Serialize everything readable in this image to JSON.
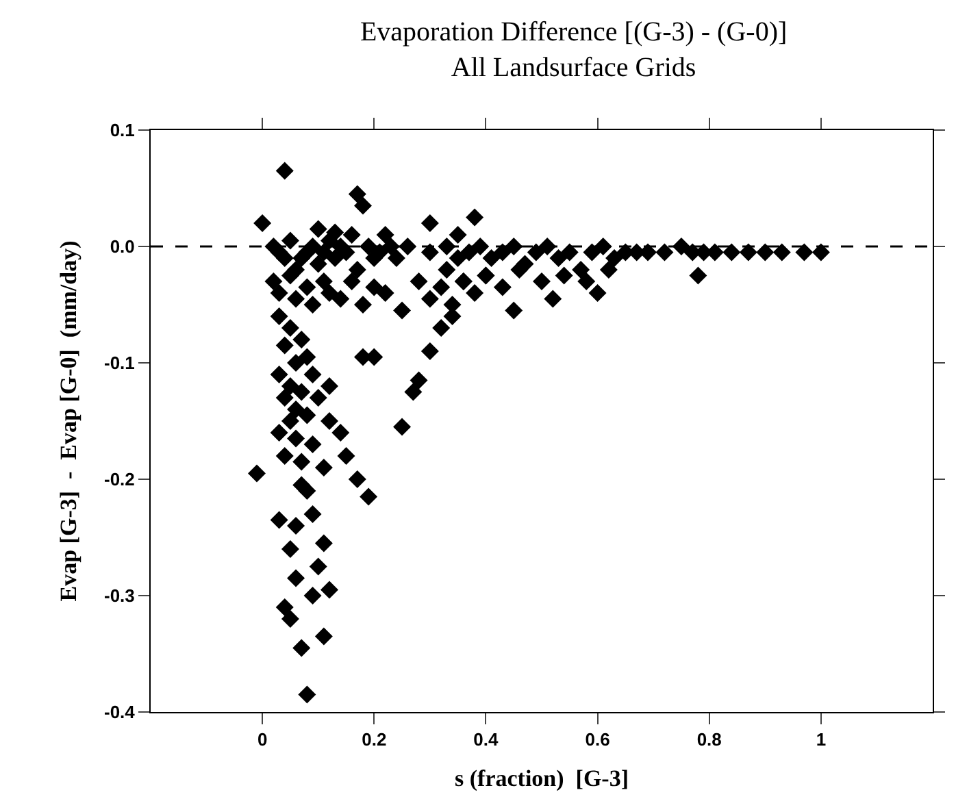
{
  "chart_data": {
    "type": "scatter",
    "title": "Evaporation Difference [(G-3) - (G-0)]",
    "subtitle": "All Landsurface Grids",
    "xlabel": "s (fraction)  [G-3]",
    "ylabel": "Evap [G-3]  -  Evap [G-0]  (mm/day)",
    "xlim": [
      -0.2,
      1.2
    ],
    "xticks": [
      0,
      0.2,
      0.4,
      0.6,
      0.8,
      1
    ],
    "ylim": [
      -0.4,
      0.1
    ],
    "yticks": [
      0.1,
      {
        "value": 0,
        "label": "0.0"
      },
      -0.1,
      -0.2,
      -0.3,
      -0.4
    ],
    "grid": false,
    "marker": "diamond",
    "ref_lines": [
      {
        "axis": "y",
        "value": 0,
        "label": null,
        "color": "#000000",
        "line_style": "dashed"
      }
    ],
    "series": [
      {
        "color": "#000000",
        "x": [
          0.04,
          0.0,
          0.17,
          0.18,
          0.3,
          0.38,
          0.35,
          0.1,
          0.13,
          0.22,
          0.26,
          0.02,
          0.03,
          0.04,
          0.05,
          0.06,
          0.07,
          0.08,
          0.09,
          0.1,
          0.11,
          0.12,
          0.13,
          0.14,
          0.15,
          0.16,
          0.17,
          0.19,
          0.2,
          0.21,
          0.23,
          0.24,
          0.02,
          0.03,
          0.05,
          0.06,
          0.08,
          0.09,
          0.11,
          0.12,
          0.14,
          0.16,
          0.18,
          0.2,
          0.22,
          0.25,
          0.28,
          0.3,
          0.32,
          0.34,
          0.36,
          0.38,
          0.4,
          0.3,
          0.33,
          0.35,
          0.37,
          0.39,
          0.41,
          0.43,
          0.45,
          0.47,
          0.49,
          0.51,
          0.53,
          0.55,
          0.57,
          0.59,
          0.61,
          0.63,
          0.65,
          0.67,
          0.69,
          0.72,
          0.75,
          0.77,
          0.79,
          0.81,
          0.84,
          0.87,
          0.9,
          0.93,
          0.97,
          1.0,
          0.33,
          0.36,
          0.4,
          0.43,
          0.46,
          0.5,
          0.54,
          0.58,
          0.62,
          0.45,
          0.52,
          0.6,
          0.78,
          0.03,
          0.05,
          0.04,
          0.07,
          0.06,
          0.08,
          0.03,
          0.05,
          0.09,
          0.04,
          0.07,
          0.1,
          0.06,
          0.08,
          0.05,
          0.12,
          0.03,
          0.06,
          0.09,
          0.04,
          0.07,
          0.11,
          0.25,
          0.27,
          0.28,
          0.3,
          0.32,
          0.34,
          0.18,
          0.2,
          0.17,
          0.19,
          0.15,
          0.14,
          0.12,
          0.08,
          0.07,
          0.11,
          0.05,
          0.04,
          0.09,
          0.12,
          0.06,
          0.1,
          0.03,
          0.06,
          0.09,
          0.11,
          0.05,
          -0.01,
          0.07,
          0.08
        ],
        "values": [
          0.065,
          0.02,
          0.045,
          0.035,
          0.02,
          0.025,
          0.01,
          0.015,
          0.012,
          0.01,
          0.0,
          0.0,
          -0.005,
          -0.01,
          0.005,
          -0.02,
          -0.01,
          -0.005,
          0.0,
          -0.015,
          -0.005,
          0.005,
          -0.01,
          0.0,
          -0.005,
          0.01,
          -0.02,
          0.0,
          -0.01,
          -0.005,
          0.0,
          -0.01,
          -0.03,
          -0.04,
          -0.025,
          -0.045,
          -0.035,
          -0.05,
          -0.03,
          -0.04,
          -0.045,
          -0.03,
          -0.05,
          -0.035,
          -0.04,
          -0.055,
          -0.03,
          -0.045,
          -0.035,
          -0.05,
          -0.03,
          -0.04,
          -0.025,
          -0.005,
          0.0,
          -0.01,
          -0.005,
          0.0,
          -0.01,
          -0.005,
          0.0,
          -0.015,
          -0.005,
          0.0,
          -0.01,
          -0.005,
          -0.02,
          -0.005,
          0.0,
          -0.01,
          -0.005,
          -0.005,
          -0.005,
          -0.005,
          0.0,
          -0.005,
          -0.005,
          -0.005,
          -0.005,
          -0.005,
          -0.005,
          -0.005,
          -0.005,
          -0.005,
          -0.02,
          -0.03,
          -0.025,
          -0.035,
          -0.02,
          -0.03,
          -0.025,
          -0.03,
          -0.02,
          -0.055,
          -0.045,
          -0.04,
          -0.025,
          -0.06,
          -0.07,
          -0.085,
          -0.08,
          -0.1,
          -0.095,
          -0.11,
          -0.12,
          -0.11,
          -0.13,
          -0.125,
          -0.13,
          -0.14,
          -0.145,
          -0.15,
          -0.12,
          -0.16,
          -0.165,
          -0.17,
          -0.18,
          -0.185,
          -0.19,
          -0.155,
          -0.125,
          -0.115,
          -0.09,
          -0.07,
          -0.06,
          -0.095,
          -0.095,
          -0.2,
          -0.215,
          -0.18,
          -0.16,
          -0.15,
          -0.385,
          -0.345,
          -0.335,
          -0.32,
          -0.31,
          -0.3,
          -0.295,
          -0.285,
          -0.275,
          -0.235,
          -0.24,
          -0.23,
          -0.255,
          -0.26,
          -0.195,
          -0.205,
          -0.21
        ]
      }
    ]
  }
}
